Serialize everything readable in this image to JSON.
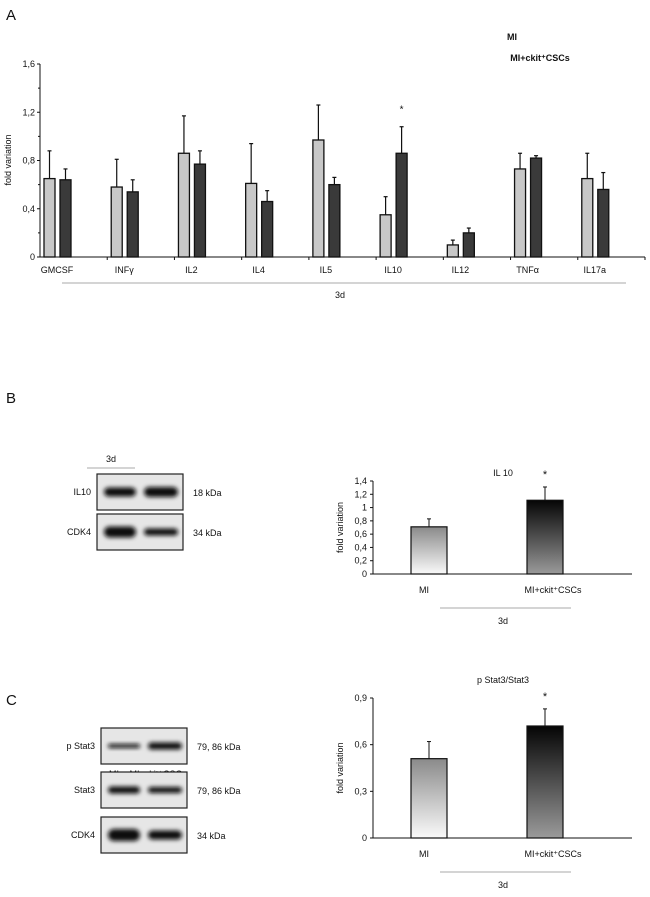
{
  "panels": {
    "a": "A",
    "b": "B",
    "c": "C"
  },
  "colors": {
    "mi": "#c8c8c8",
    "ckit": "#3a3a3a",
    "axis": "#111111",
    "group_line": "#aaaaaa"
  },
  "chart_data": [
    {
      "type": "bar",
      "panel": "A",
      "title": "",
      "ylabel": "fold variation",
      "xlabel": "3d",
      "ylim": [
        0,
        1.6
      ],
      "yticks": [
        "0",
        "0,4",
        "0,8",
        "1,2",
        "1,6"
      ],
      "ytick_values": [
        0,
        0.4,
        0.8,
        1.2,
        1.6
      ],
      "legend": {
        "position": "top-right",
        "entries": [
          "MI",
          "MI+ckit⁺CSCs"
        ]
      },
      "categories": [
        "GMCSF",
        "INFγ",
        "IL2",
        "IL4",
        "IL5",
        "IL10",
        "IL12",
        "TNFα",
        "IL17a"
      ],
      "series": [
        {
          "name": "MI",
          "values": [
            0.65,
            0.58,
            0.86,
            0.61,
            0.97,
            0.35,
            0.1,
            0.73,
            0.65
          ],
          "error_top": [
            0.88,
            0.81,
            1.17,
            0.94,
            1.26,
            0.5,
            0.14,
            0.86,
            0.86
          ]
        },
        {
          "name": "MI+ckit⁺CSCs",
          "values": [
            0.64,
            0.54,
            0.77,
            0.46,
            0.6,
            0.86,
            0.2,
            0.82,
            0.56
          ],
          "error_top": [
            0.73,
            0.64,
            0.88,
            0.55,
            0.66,
            1.08,
            0.24,
            0.84,
            0.7
          ]
        }
      ],
      "significance": [
        {
          "category": "IL10",
          "label": "*"
        }
      ]
    },
    {
      "type": "bar",
      "panel": "B",
      "title": "IL 10",
      "ylabel": "fold variation",
      "xlabel": "3d",
      "ylim": [
        0,
        1.4
      ],
      "yticks": [
        "0",
        "0,2",
        "0,4",
        "0,6",
        "0,8",
        "1",
        "1,2",
        "1,4"
      ],
      "ytick_values": [
        0,
        0.2,
        0.4,
        0.6,
        0.8,
        1.0,
        1.2,
        1.4
      ],
      "categories": [
        "MI",
        "MI+ckit⁺CSCs"
      ],
      "values": [
        0.71,
        1.11
      ],
      "error_top": [
        0.83,
        1.31
      ],
      "significance": [
        {
          "category": "MI+ckit⁺CSCs",
          "label": "*"
        }
      ]
    },
    {
      "type": "bar",
      "panel": "C",
      "title": "p Stat3/Stat3",
      "ylabel": "fold variation",
      "xlabel": "3d",
      "ylim": [
        0,
        0.9
      ],
      "yticks": [
        "0",
        "0,3",
        "0,6",
        "0,9"
      ],
      "ytick_values": [
        0,
        0.3,
        0.6,
        0.9
      ],
      "categories": [
        "MI",
        "MI+ckit⁺CSCs"
      ],
      "values": [
        0.51,
        0.72
      ],
      "error_top": [
        0.62,
        0.83
      ],
      "significance": [
        {
          "category": "MI+ckit⁺CSCs",
          "label": "*"
        }
      ]
    }
  ],
  "blots": {
    "b": {
      "timepoint": "3d",
      "lanes": [
        "MI",
        "MI+ckit⁺CSCs"
      ],
      "rows": [
        {
          "label": "IL10",
          "kda": "18 kDa"
        },
        {
          "label": "CDK4",
          "kda": "34 kDa"
        }
      ]
    },
    "c": {
      "timepoint": "3d",
      "lanes": [
        "MI",
        "MI+ckit⁺CSCs"
      ],
      "rows": [
        {
          "label": "p Stat3",
          "kda": "79, 86 kDa"
        },
        {
          "label": "Stat3",
          "kda": "79, 86 kDa"
        },
        {
          "label": "CDK4",
          "kda": "34 kDa"
        }
      ]
    }
  }
}
